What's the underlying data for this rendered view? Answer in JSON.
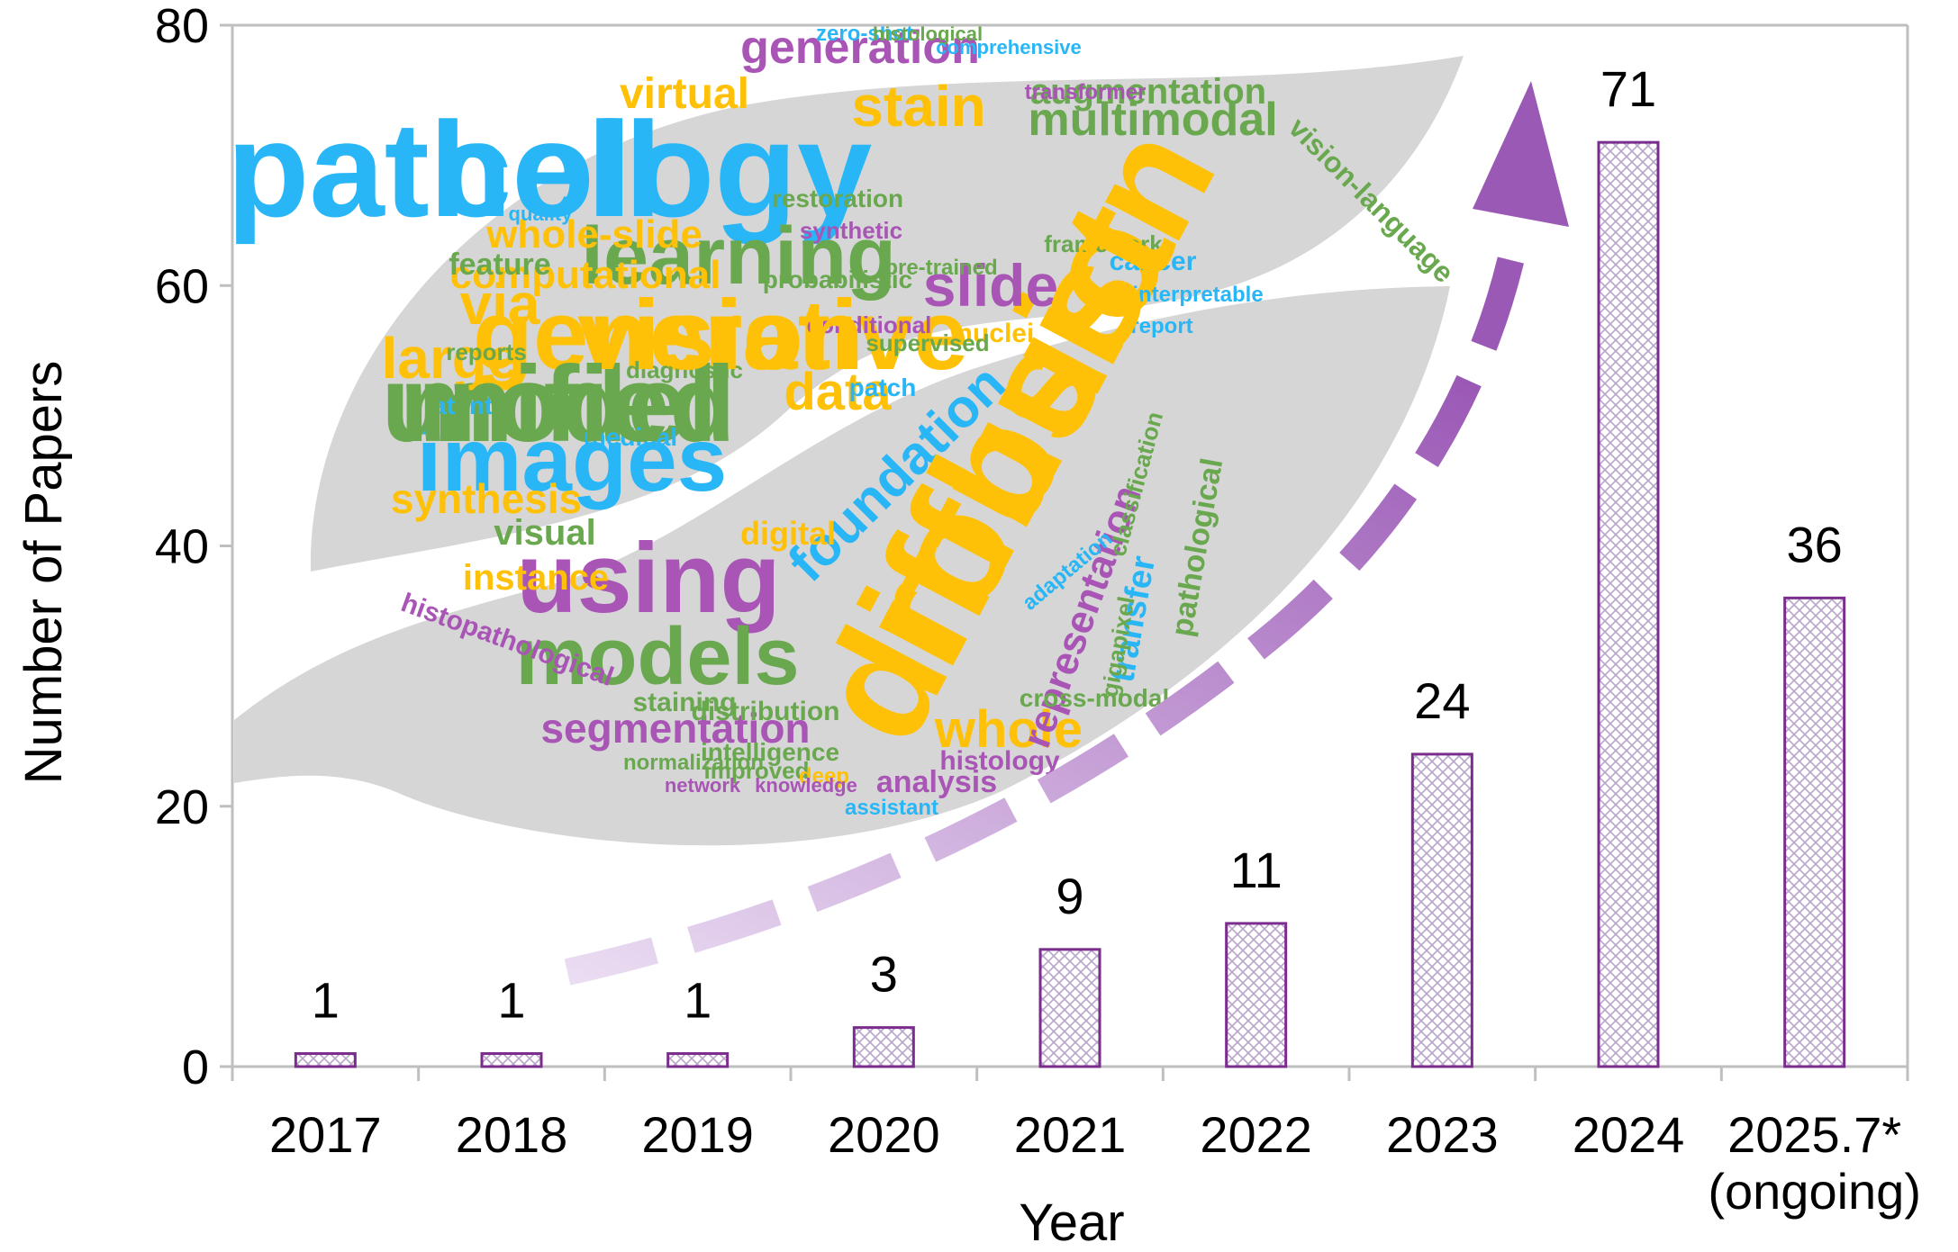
{
  "chart_data": {
    "type": "bar",
    "xlabel": "Year",
    "ylabel": "Number of Papers",
    "ylim": [
      0,
      80
    ],
    "yticks": [
      0,
      20,
      40,
      60,
      80
    ],
    "categories": [
      "2017",
      "2018",
      "2019",
      "2020",
      "2021",
      "2022",
      "2023",
      "2024",
      "2025.7*"
    ],
    "category_notes": [
      "",
      "",
      "",
      "",
      "",
      "",
      "",
      "",
      "(ongoing)"
    ],
    "values": [
      1,
      1,
      1,
      3,
      9,
      11,
      24,
      71,
      36
    ],
    "data_labels": [
      "1",
      "1",
      "1",
      "3",
      "9",
      "11",
      "24",
      "71",
      "36"
    ],
    "grid": false,
    "bar_style": "crosshatch pattern with purple outline",
    "colors": {
      "bar_outline": "#7B2D8E",
      "bar_hatch": "#B8A3C9",
      "highlight_label": "#C00000",
      "arrow": "#9B59B6",
      "axis": "#BFBFBF"
    },
    "word_cloud": {
      "words": [
        "pathology",
        "diffusion",
        "generative",
        "model",
        "images",
        "learning",
        "using",
        "models",
        "slide",
        "multimodal",
        "generation",
        "augmentation",
        "stain",
        "foundation",
        "segmentation",
        "whole",
        "whole-slide",
        "computational",
        "via",
        "large",
        "data",
        "synthesis",
        "virtual",
        "vision-language",
        "synthetic",
        "restoration",
        "probabilistic",
        "representation",
        "transfer",
        "pathological",
        "histopathological",
        "instance",
        "visual",
        "digital",
        "medical",
        "latent",
        "analysis",
        "cancer",
        "nuclei",
        "gigapixel",
        "histology",
        "staining",
        "intelligence",
        "assistant",
        "distribution",
        "normalization",
        "feature",
        "patch",
        "framework",
        "report",
        "reports",
        "diagnostic",
        "zero-shot",
        "histological",
        "comprehensive",
        "transformer",
        "classification",
        "adaptation",
        "cross-modal",
        "improved",
        "deep",
        "network",
        "knowledge",
        "quality",
        "supervised",
        "conditional",
        "interpretable",
        "pre-trained",
        "cell",
        "robust",
        "vision",
        "unified"
      ]
    }
  }
}
